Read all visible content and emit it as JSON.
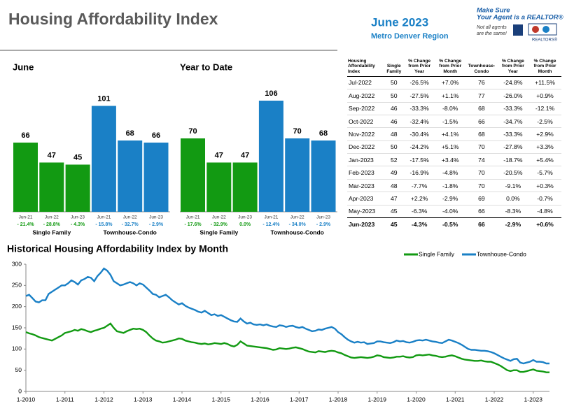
{
  "header": {
    "title": "Housing Affordability Index",
    "date": "June 2023",
    "region": "Metro Denver Region",
    "logo_line1": "Make Sure",
    "logo_line2": "Your Agent is a REALTOR®",
    "logo_line3": "Not all agents",
    "logo_line4": "are the same!",
    "logo_line5": "REALTORS®"
  },
  "chart_data": [
    {
      "type": "bar",
      "title": "June",
      "categories": [
        "Jun-21",
        "Jun-22",
        "Jun-23"
      ],
      "series": [
        {
          "name": "Single Family",
          "color": "#129a12",
          "values": [
            66,
            47,
            45
          ],
          "changes": [
            "- 21.4%",
            "- 28.8%",
            "- 4.3%"
          ]
        },
        {
          "name": "Townhouse-Condo",
          "color": "#1a80c6",
          "values": [
            101,
            68,
            66
          ],
          "changes": [
            "- 15.8%",
            "- 32.7%",
            "- 2.9%"
          ]
        }
      ]
    },
    {
      "type": "bar",
      "title": "Year to Date",
      "categories": [
        "Jun-21",
        "Jun-22",
        "Jun-23"
      ],
      "series": [
        {
          "name": "Single Family",
          "color": "#129a12",
          "values": [
            70,
            47,
            47
          ],
          "changes": [
            "- 17.6%",
            "- 32.9%",
            "0.0%"
          ]
        },
        {
          "name": "Townhouse-Condo",
          "color": "#1a80c6",
          "values": [
            106,
            70,
            68
          ],
          "changes": [
            "- 12.4%",
            "- 34.0%",
            "- 2.9%"
          ]
        }
      ]
    },
    {
      "type": "line",
      "title": "Historical Housing Affordability Index by Month",
      "ylim": [
        0,
        300
      ],
      "yticks": [
        0,
        50,
        100,
        150,
        200,
        250,
        300
      ],
      "grid": false,
      "legend": "top-right",
      "categories": [
        "1-2010",
        null,
        null,
        null,
        null,
        null,
        null,
        null,
        null,
        null,
        null,
        null,
        "1-2011",
        null,
        null,
        null,
        null,
        null,
        null,
        null,
        null,
        null,
        null,
        null,
        "1-2012",
        null,
        null,
        null,
        null,
        null,
        null,
        null,
        null,
        null,
        null,
        null,
        "1-2013",
        null,
        null,
        null,
        null,
        null,
        null,
        null,
        null,
        null,
        null,
        null,
        "1-2014",
        null,
        null,
        null,
        null,
        null,
        null,
        null,
        null,
        null,
        null,
        null,
        "1-2015",
        null,
        null,
        null,
        null,
        null,
        null,
        null,
        null,
        null,
        null,
        null,
        "1-2016",
        null,
        null,
        null,
        null,
        null,
        null,
        null,
        null,
        null,
        null,
        null,
        "1-2017",
        null,
        null,
        null,
        null,
        null,
        null,
        null,
        null,
        null,
        null,
        null,
        "1-2018",
        null,
        null,
        null,
        null,
        null,
        null,
        null,
        null,
        null,
        null,
        null,
        "1-2019",
        null,
        null,
        null,
        null,
        null,
        null,
        null,
        null,
        null,
        null,
        null,
        "1-2020",
        null,
        null,
        null,
        null,
        null,
        null,
        null,
        null,
        null,
        null,
        null,
        "1-2021",
        null,
        null,
        null,
        null,
        null,
        null,
        null,
        null,
        null,
        null,
        null,
        "1-2022",
        null,
        null,
        null,
        null,
        null,
        null,
        null,
        null,
        null,
        null,
        null,
        "1-2023",
        null,
        null,
        null,
        null,
        null
      ],
      "series": [
        {
          "name": "Single Family",
          "color": "#129a12",
          "values": [
            140,
            137,
            135,
            132,
            128,
            126,
            124,
            122,
            120,
            124,
            128,
            132,
            138,
            140,
            142,
            145,
            143,
            147,
            145,
            142,
            140,
            143,
            145,
            148,
            150,
            155,
            160,
            150,
            142,
            140,
            138,
            142,
            145,
            148,
            147,
            148,
            145,
            140,
            132,
            125,
            120,
            118,
            115,
            116,
            118,
            120,
            122,
            125,
            124,
            120,
            118,
            116,
            115,
            113,
            112,
            113,
            111,
            112,
            114,
            113,
            112,
            114,
            112,
            108,
            106,
            110,
            118,
            113,
            108,
            107,
            106,
            105,
            104,
            103,
            102,
            100,
            98,
            99,
            102,
            101,
            100,
            101,
            103,
            104,
            102,
            100,
            97,
            94,
            93,
            92,
            95,
            94,
            93,
            95,
            96,
            95,
            92,
            90,
            86,
            83,
            80,
            79,
            80,
            81,
            80,
            79,
            80,
            82,
            85,
            84,
            81,
            80,
            79,
            80,
            82,
            82,
            83,
            81,
            80,
            81,
            85,
            86,
            85,
            86,
            87,
            85,
            84,
            82,
            81,
            82,
            84,
            85,
            83,
            80,
            77,
            75,
            74,
            73,
            72,
            72,
            73,
            71,
            70,
            70,
            67,
            64,
            60,
            55,
            50,
            48,
            50,
            50,
            46,
            46,
            48,
            50,
            52,
            49,
            48,
            47,
            45,
            45
          ]
        },
        {
          "name": "Townhouse-Condo",
          "color": "#1a80c6",
          "values": [
            225,
            228,
            220,
            212,
            210,
            215,
            215,
            230,
            235,
            240,
            245,
            250,
            250,
            255,
            262,
            258,
            252,
            262,
            265,
            270,
            268,
            260,
            272,
            280,
            290,
            285,
            275,
            260,
            255,
            250,
            252,
            255,
            258,
            255,
            250,
            255,
            252,
            245,
            238,
            230,
            228,
            222,
            225,
            228,
            222,
            215,
            210,
            205,
            208,
            202,
            198,
            195,
            192,
            188,
            186,
            190,
            185,
            180,
            182,
            178,
            180,
            176,
            172,
            168,
            165,
            164,
            172,
            165,
            160,
            162,
            158,
            157,
            158,
            156,
            158,
            155,
            153,
            152,
            156,
            155,
            152,
            154,
            155,
            152,
            150,
            152,
            148,
            145,
            142,
            143,
            146,
            145,
            148,
            150,
            152,
            148,
            140,
            135,
            128,
            122,
            118,
            115,
            117,
            115,
            116,
            112,
            113,
            114,
            118,
            118,
            116,
            115,
            114,
            116,
            120,
            118,
            119,
            116,
            115,
            117,
            120,
            121,
            120,
            122,
            120,
            118,
            117,
            115,
            114,
            118,
            122,
            120,
            117,
            114,
            110,
            105,
            100,
            98,
            98,
            97,
            96,
            96,
            95,
            93,
            90,
            86,
            82,
            78,
            75,
            72,
            76,
            77,
            68,
            66,
            68,
            70,
            74,
            70,
            70,
            69,
            66,
            66
          ]
        }
      ]
    }
  ],
  "table": {
    "headers": [
      "Housing Affordability Index",
      "Single Family",
      "% Change from Prior Year",
      "% Change from Prior Month",
      "Townhouse-Condo",
      "% Change from Prior Year",
      "% Change from Prior Month"
    ],
    "rows": [
      [
        "Jul-2022",
        50,
        "-26.5%",
        "+7.0%",
        76,
        "-24.8%",
        "+11.5%"
      ],
      [
        "Aug-2022",
        50,
        "-27.5%",
        "+1.1%",
        77,
        "-26.0%",
        "+0.9%"
      ],
      [
        "Sep-2022",
        46,
        "-33.3%",
        "-8.0%",
        68,
        "-33.3%",
        "-12.1%"
      ],
      [
        "Oct-2022",
        46,
        "-32.4%",
        "-1.5%",
        66,
        "-34.7%",
        "-2.5%"
      ],
      [
        "Nov-2022",
        48,
        "-30.4%",
        "+4.1%",
        68,
        "-33.3%",
        "+2.9%"
      ],
      [
        "Dec-2022",
        50,
        "-24.2%",
        "+5.1%",
        70,
        "-27.8%",
        "+3.3%"
      ],
      [
        "Jan-2023",
        52,
        "-17.5%",
        "+3.4%",
        74,
        "-18.7%",
        "+5.4%"
      ],
      [
        "Feb-2023",
        49,
        "-16.9%",
        "-4.8%",
        70,
        "-20.5%",
        "-5.7%"
      ],
      [
        "Mar-2023",
        48,
        "-7.7%",
        "-1.8%",
        70,
        "-9.1%",
        "+0.3%"
      ],
      [
        "Apr-2023",
        47,
        "+2.2%",
        "-2.9%",
        69,
        "0.0%",
        "-0.7%"
      ],
      [
        "May-2023",
        45,
        "-6.3%",
        "-4.0%",
        66,
        "-8.3%",
        "-4.8%"
      ],
      [
        "Jun-2023",
        45,
        "-4.3%",
        "-0.5%",
        66,
        "-2.9%",
        "+0.6%"
      ]
    ]
  }
}
